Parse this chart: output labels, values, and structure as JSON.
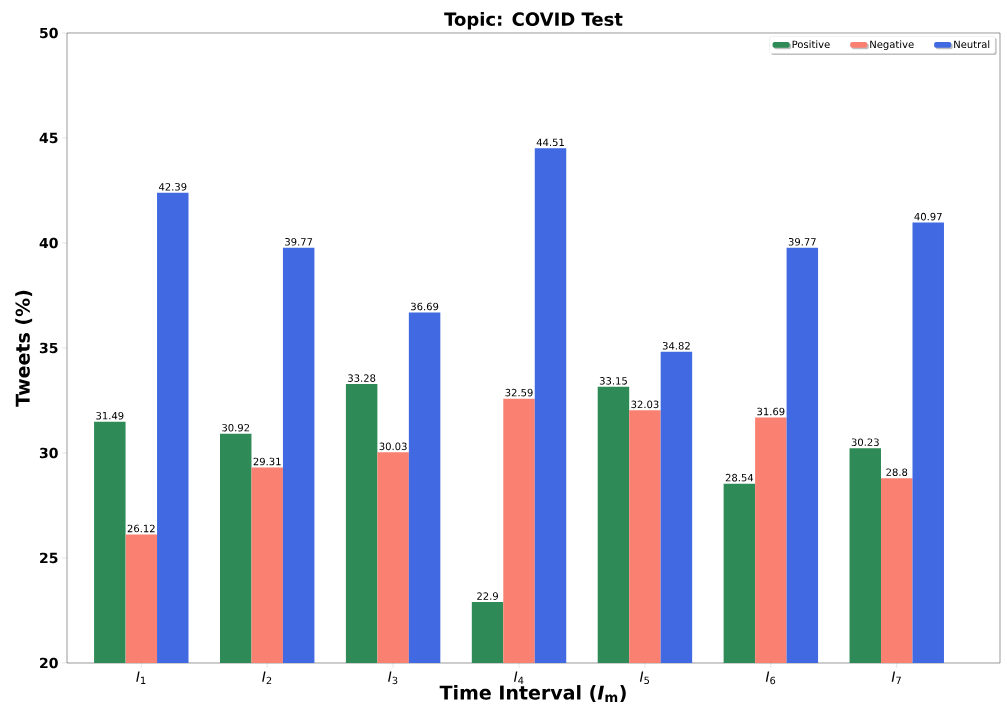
{
  "chart_data": {
    "type": "bar",
    "title": "Topic: COVID Test",
    "xlabel": "Time Interval (*I*$_{m}$)",
    "ylabel": "Tweets (%)",
    "categories": [
      "*I*$_{1}$",
      "*I*$_{2}$",
      "*I*$_{3}$",
      "*I*$_{4}$",
      "*I*$_{5}$",
      "*I*$_{6}$",
      "*I*$_{7}$"
    ],
    "series": [
      {
        "name": "Positive",
        "color": "#2e8b57",
        "values": [
          31.49,
          30.92,
          33.28,
          22.9,
          33.15,
          28.54,
          30.23
        ],
        "value_labels": [
          "31.49",
          "30.92",
          "33.28",
          "22.9",
          "33.15",
          "28.54",
          "30.23"
        ]
      },
      {
        "name": "Negative",
        "color": "#fa8072",
        "values": [
          26.12,
          29.31,
          30.03,
          32.59,
          32.03,
          31.69,
          28.8
        ],
        "value_labels": [
          "26.12",
          "29.31",
          "30.03",
          "32.59",
          "32.03",
          "31.69",
          "28.8"
        ]
      },
      {
        "name": "Neutral",
        "color": "#4169e1",
        "values": [
          42.39,
          39.77,
          36.69,
          44.51,
          34.82,
          39.77,
          40.97
        ],
        "value_labels": [
          "42.39",
          "39.77",
          "36.69",
          "44.51",
          "34.82",
          "39.77",
          "40.97"
        ]
      }
    ],
    "ylim": [
      20,
      50
    ],
    "yticks": [
      20,
      25,
      30,
      35,
      40,
      45,
      50
    ],
    "grid": false,
    "legend": "top right"
  }
}
